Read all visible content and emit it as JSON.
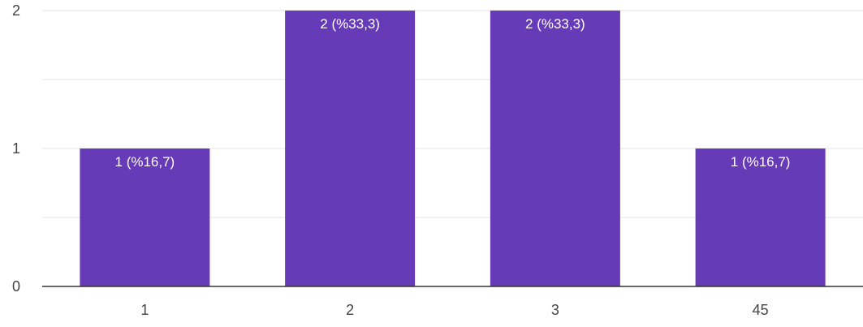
{
  "chart_data": {
    "type": "bar",
    "categories": [
      "1",
      "2",
      "3",
      "45"
    ],
    "values": [
      1,
      2,
      2,
      1
    ],
    "data_labels": [
      "1 (%16,7)",
      "2 (%33,3)",
      "2 (%33,3)",
      "1 (%16,7)"
    ],
    "y_ticks": [
      "0",
      "1",
      "2"
    ],
    "ylim": [
      0,
      2
    ],
    "grid": true,
    "bar_color": "#673ab7",
    "title": "",
    "xlabel": "",
    "ylabel": ""
  }
}
